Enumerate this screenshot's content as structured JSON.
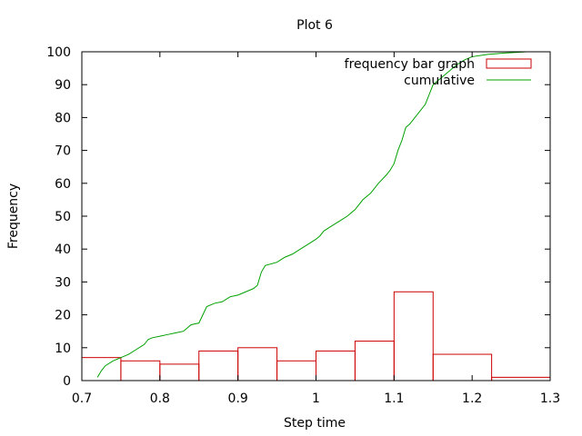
{
  "chart_data": {
    "type": "bar",
    "title": "Plot 6",
    "xlabel": "Step time",
    "ylabel": "Frequency",
    "xlim": [
      0.7,
      1.3
    ],
    "ylim": [
      0,
      100
    ],
    "xticks": [
      "0.7",
      "0.8",
      "0.9",
      "1",
      "1.1",
      "1.2",
      "1.3"
    ],
    "yticks": [
      "0",
      "10",
      "20",
      "30",
      "40",
      "50",
      "60",
      "70",
      "80",
      "90",
      "100"
    ],
    "grid": false,
    "legend_position": "top-right",
    "series": [
      {
        "name": "frequency bar graph",
        "type": "bar",
        "color": "#cc0000",
        "bins": [
          {
            "x0": 0.7,
            "x1": 0.75,
            "value": 7
          },
          {
            "x0": 0.75,
            "x1": 0.8,
            "value": 6
          },
          {
            "x0": 0.8,
            "x1": 0.85,
            "value": 5
          },
          {
            "x0": 0.85,
            "x1": 0.9,
            "value": 9
          },
          {
            "x0": 0.9,
            "x1": 0.95,
            "value": 10
          },
          {
            "x0": 0.95,
            "x1": 1.0,
            "value": 6
          },
          {
            "x0": 1.0,
            "x1": 1.05,
            "value": 9
          },
          {
            "x0": 1.05,
            "x1": 1.1,
            "value": 12
          },
          {
            "x0": 1.1,
            "x1": 1.15,
            "value": 27
          },
          {
            "x0": 1.15,
            "x1": 1.225,
            "value": 8
          },
          {
            "x0": 1.225,
            "x1": 1.3,
            "value": 1
          }
        ]
      },
      {
        "name": "cumulative",
        "type": "line",
        "color": "#00a000",
        "points": [
          [
            0.72,
            1
          ],
          [
            0.725,
            3
          ],
          [
            0.73,
            4.5
          ],
          [
            0.74,
            6
          ],
          [
            0.75,
            7
          ],
          [
            0.76,
            8
          ],
          [
            0.77,
            9.5
          ],
          [
            0.78,
            11
          ],
          [
            0.785,
            12.5
          ],
          [
            0.79,
            13
          ],
          [
            0.8,
            13.5
          ],
          [
            0.81,
            14
          ],
          [
            0.82,
            14.5
          ],
          [
            0.83,
            15
          ],
          [
            0.835,
            16
          ],
          [
            0.84,
            17
          ],
          [
            0.85,
            17.5
          ],
          [
            0.855,
            20
          ],
          [
            0.86,
            22.5
          ],
          [
            0.87,
            23.5
          ],
          [
            0.88,
            24
          ],
          [
            0.89,
            25.5
          ],
          [
            0.9,
            26
          ],
          [
            0.91,
            27
          ],
          [
            0.92,
            28
          ],
          [
            0.925,
            29
          ],
          [
            0.93,
            33
          ],
          [
            0.935,
            35
          ],
          [
            0.95,
            36
          ],
          [
            0.96,
            37.5
          ],
          [
            0.97,
            38.5
          ],
          [
            0.98,
            40
          ],
          [
            0.99,
            41.5
          ],
          [
            1.0,
            43
          ],
          [
            1.005,
            44
          ],
          [
            1.01,
            45.5
          ],
          [
            1.02,
            47
          ],
          [
            1.03,
            48.5
          ],
          [
            1.04,
            50
          ],
          [
            1.05,
            52
          ],
          [
            1.06,
            55
          ],
          [
            1.07,
            57
          ],
          [
            1.08,
            60
          ],
          [
            1.09,
            62.5
          ],
          [
            1.095,
            64
          ],
          [
            1.1,
            66
          ],
          [
            1.105,
            70
          ],
          [
            1.11,
            73
          ],
          [
            1.115,
            77
          ],
          [
            1.12,
            78
          ],
          [
            1.13,
            81
          ],
          [
            1.14,
            84
          ],
          [
            1.145,
            87
          ],
          [
            1.15,
            90
          ],
          [
            1.16,
            92
          ],
          [
            1.17,
            94
          ],
          [
            1.18,
            96
          ],
          [
            1.19,
            97.5
          ],
          [
            1.2,
            98.5
          ],
          [
            1.22,
            99.2
          ],
          [
            1.24,
            99.6
          ],
          [
            1.27,
            100
          ]
        ]
      }
    ]
  }
}
